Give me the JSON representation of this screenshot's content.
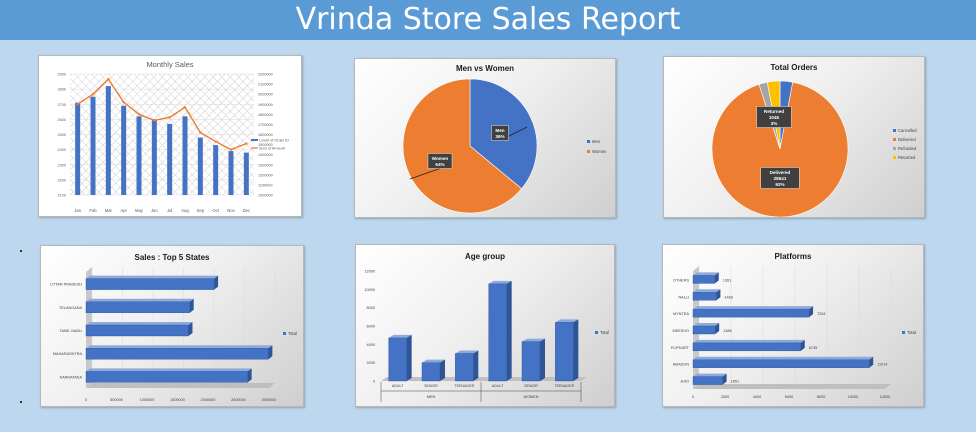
{
  "report": {
    "title": "Vrinda Store Sales Report"
  },
  "chart_data": [
    {
      "type": "bar+line",
      "title": "Monthly Sales",
      "categories": [
        "Jan",
        "Feb",
        "Mar",
        "Apr",
        "May",
        "Jun",
        "Jul",
        "Aug",
        "Sep",
        "Oct",
        "Nov",
        "Dec"
      ],
      "series": [
        {
          "name": "Count of Order ID",
          "axis": "left",
          "values": [
            2710,
            2750,
            2820,
            2690,
            2620,
            2600,
            2570,
            2620,
            2480,
            2430,
            2390,
            2380
          ]
        },
        {
          "name": "Sum of Amount",
          "axis": "right",
          "values": [
            1900000,
            2000000,
            2150000,
            1920000,
            1800000,
            1740000,
            1770000,
            1870000,
            1620000,
            1530000,
            1450000,
            1510000
          ]
        }
      ],
      "ylim_left": [
        2100,
        2900
      ],
      "ylim_right": [
        1000000,
        2200000
      ],
      "yticks_left": [
        "2100",
        "2200",
        "2300",
        "2400",
        "2500",
        "2600",
        "2700",
        "2800",
        "2900"
      ],
      "yticks_right": [
        "1000000",
        "1100000",
        "1200000",
        "1300000",
        "1400000",
        "1500000",
        "1600000",
        "1700000",
        "1800000",
        "1900000",
        "2000000",
        "2100000",
        "2200000"
      ],
      "legend": "right"
    },
    {
      "type": "pie",
      "title": "Men vs Women",
      "labels": [
        "Men",
        "Women"
      ],
      "values": [
        36,
        64
      ],
      "data_labels": [
        "36%",
        "64%"
      ],
      "legend": "right"
    },
    {
      "type": "pie",
      "title": "Total Orders",
      "labels": [
        "Cancelled",
        "Delivered",
        "Refunded",
        "Returned"
      ],
      "values": [
        3.0,
        92.0,
        2.0,
        3.0
      ],
      "annotations": {
        "Delivered": {
          "count": "28641",
          "pct": "92%"
        },
        "Returned": {
          "count": "1045",
          "pct": "3%"
        }
      },
      "legend": "right"
    },
    {
      "type": "bar",
      "orientation": "horizontal",
      "title": "Sales : Top 5 States",
      "categories": [
        "UTTAR PRADESH",
        "TELANGANA",
        "TAMIL NADU",
        "MAHARASHTRA",
        "KARNATAKA"
      ],
      "values": [
        2100000,
        1700000,
        1680000,
        2990000,
        2650000
      ],
      "xlim": [
        0,
        3000000
      ],
      "xticks": [
        "0",
        "500000",
        "1000000",
        "1500000",
        "2000000",
        "2500000",
        "3000000"
      ],
      "legend_label": "Total",
      "legend": "right"
    },
    {
      "type": "bar",
      "title": "Age group",
      "categories": [
        "ADULT",
        "SENIOR",
        "TEENAGER",
        "ADULT",
        "SENIOR",
        "TEENAGER"
      ],
      "groups": [
        "MEN",
        "WOMEN"
      ],
      "values": [
        4700,
        2000,
        3000,
        10600,
        4300,
        6400
      ],
      "ylim": [
        0,
        12000
      ],
      "yticks": [
        "0",
        "2000",
        "4000",
        "6000",
        "8000",
        "10000",
        "12000"
      ],
      "legend_label": "Total",
      "legend": "right"
    },
    {
      "type": "bar",
      "orientation": "horizontal",
      "title": "Platforms",
      "categories": [
        "OTHERS",
        "NALLI",
        "MYNTRA",
        "MEESHO",
        "FLIPKART",
        "AMAZON",
        "AJIO"
      ],
      "values": [
        1361,
        1463,
        7254,
        1386,
        6735,
        11014,
        1851
      ],
      "data_labels": [
        "1361",
        "1463",
        "7254",
        "1386",
        "6735",
        "11014",
        "1851"
      ],
      "xlim": [
        0,
        12000
      ],
      "xticks": [
        "0",
        "2000",
        "4000",
        "6000",
        "8000",
        "10000",
        "12000"
      ],
      "legend_label": "Total",
      "legend": "right"
    }
  ]
}
